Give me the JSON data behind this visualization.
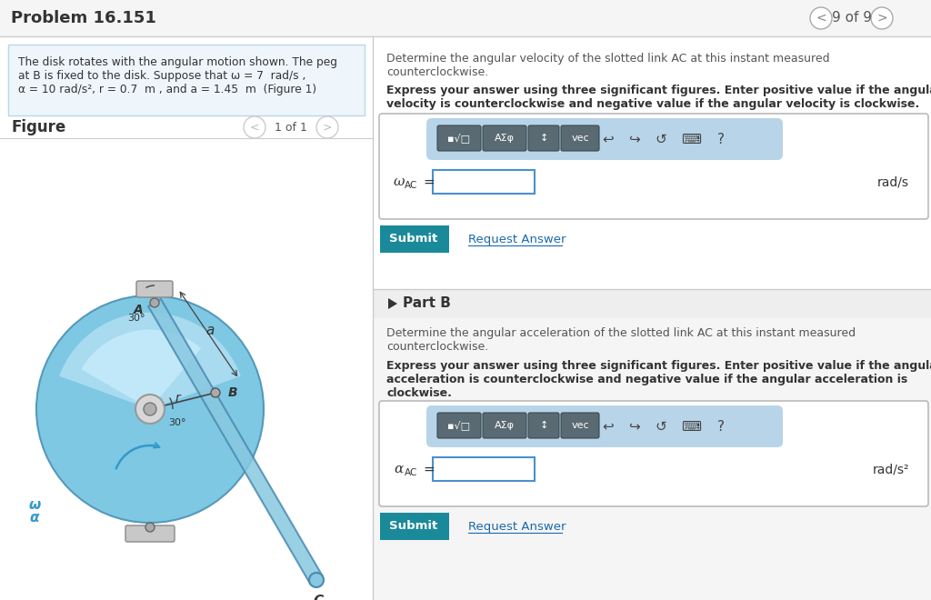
{
  "title": "Problem 16.151",
  "page_indicator": "9 of 9",
  "figure_label": "Figure",
  "figure_nav": "1 of 1",
  "part_a_intro_line1": "Determine the angular velocity of the slotted link AC at this instant measured",
  "part_a_intro_line2": "counterclockwise.",
  "part_a_bold_line1": "Express your answer using three significant figures. Enter positive value if the angular",
  "part_a_bold_line2": "velocity is counterclockwise and negative value if the angular velocity is clockwise.",
  "omega_label_sym": "ω",
  "omega_sub": "AC",
  "omega_unit": "rad/s",
  "part_b_label": "Part B",
  "part_b_intro_line1": "Determine the angular acceleration of the slotted link AC at this instant measured",
  "part_b_intro_line2": "counterclockwise.",
  "part_b_bold_line1": "Express your answer using three significant figures. Enter positive value if the angular",
  "part_b_bold_line2": "acceleration is counterclockwise and negative value if the angular acceleration is",
  "part_b_bold_line3": "clockwise.",
  "alpha_label_sym": "α",
  "alpha_sub": "AC",
  "alpha_unit": "rad/s²",
  "submit_text": "Submit",
  "request_text": "Request Answer",
  "prob_line1": "The disk rotates with the angular motion shown. The peg",
  "prob_line2": "at B is fixed to the disk. Suppose that ω = 7  rad/s ,",
  "prob_line3": "α = 10 rad/s², r = 0.7  m , and a = 1.45  m  (Figure 1)",
  "submit_color": "#1a8a9a",
  "link_color": "#1a6aaa",
  "bg_color": "#ffffff",
  "left_panel_bg": "#eef6fb",
  "left_panel_border": "#b8d8ec",
  "toolbar_bg": "#b8d4e8",
  "toolbar_btn_bg": "#5a6a72",
  "input_border": "#4a90d0",
  "divider_color": "#cccccc",
  "header_bg": "#f5f5f5",
  "partb_bg": "#f5f5f5",
  "text_dark": "#333333",
  "text_mid": "#555555"
}
